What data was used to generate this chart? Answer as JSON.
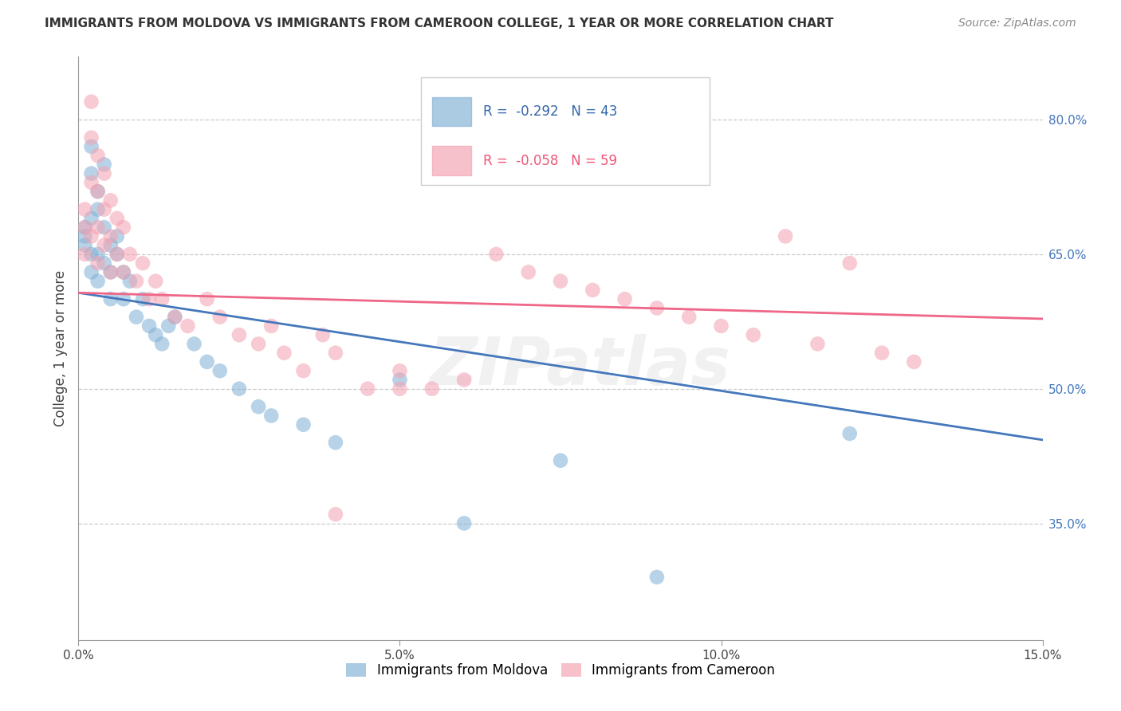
{
  "title": "IMMIGRANTS FROM MOLDOVA VS IMMIGRANTS FROM CAMEROON COLLEGE, 1 YEAR OR MORE CORRELATION CHART",
  "source": "Source: ZipAtlas.com",
  "ylabel": "College, 1 year or more",
  "xlim": [
    0.0,
    0.15
  ],
  "ylim": [
    0.22,
    0.87
  ],
  "yticks": [
    0.35,
    0.5,
    0.65,
    0.8
  ],
  "ytick_labels": [
    "35.0%",
    "50.0%",
    "65.0%",
    "80.0%"
  ],
  "xtick_labels": [
    "0.0%",
    "5.0%",
    "10.0%",
    "15.0%"
  ],
  "legend_R_moldova": "-0.292",
  "legend_N_moldova": "43",
  "legend_R_cameroon": "-0.058",
  "legend_N_cameroon": "59",
  "blue_color": "#7EB0D5",
  "pink_color": "#F4A0B0",
  "blue_line_color": "#4477BB",
  "pink_line_color": "#EE6688",
  "watermark": "ZIPatlas",
  "moldova_x": [
    0.001,
    0.001,
    0.001,
    0.002,
    0.002,
    0.002,
    0.002,
    0.002,
    0.003,
    0.003,
    0.003,
    0.003,
    0.004,
    0.004,
    0.004,
    0.005,
    0.005,
    0.005,
    0.006,
    0.006,
    0.007,
    0.007,
    0.008,
    0.009,
    0.01,
    0.011,
    0.012,
    0.013,
    0.014,
    0.015,
    0.018,
    0.02,
    0.022,
    0.025,
    0.028,
    0.03,
    0.035,
    0.04,
    0.05,
    0.06,
    0.075,
    0.09,
    0.12
  ],
  "moldova_y": [
    0.67,
    0.68,
    0.66,
    0.77,
    0.74,
    0.69,
    0.65,
    0.63,
    0.72,
    0.7,
    0.65,
    0.62,
    0.75,
    0.68,
    0.64,
    0.66,
    0.63,
    0.6,
    0.67,
    0.65,
    0.63,
    0.6,
    0.62,
    0.58,
    0.6,
    0.57,
    0.56,
    0.55,
    0.57,
    0.58,
    0.55,
    0.53,
    0.52,
    0.5,
    0.48,
    0.47,
    0.46,
    0.44,
    0.51,
    0.35,
    0.42,
    0.29,
    0.45
  ],
  "cameroon_x": [
    0.001,
    0.001,
    0.001,
    0.002,
    0.002,
    0.002,
    0.002,
    0.003,
    0.003,
    0.003,
    0.003,
    0.004,
    0.004,
    0.004,
    0.005,
    0.005,
    0.005,
    0.006,
    0.006,
    0.007,
    0.007,
    0.008,
    0.009,
    0.01,
    0.011,
    0.012,
    0.013,
    0.015,
    0.017,
    0.02,
    0.022,
    0.025,
    0.028,
    0.03,
    0.032,
    0.035,
    0.038,
    0.04,
    0.045,
    0.05,
    0.055,
    0.06,
    0.065,
    0.07,
    0.075,
    0.08,
    0.085,
    0.09,
    0.095,
    0.1,
    0.105,
    0.11,
    0.115,
    0.12,
    0.125,
    0.13,
    0.095,
    0.04,
    0.05
  ],
  "cameroon_y": [
    0.68,
    0.65,
    0.7,
    0.82,
    0.78,
    0.73,
    0.67,
    0.76,
    0.72,
    0.68,
    0.64,
    0.74,
    0.7,
    0.66,
    0.71,
    0.67,
    0.63,
    0.69,
    0.65,
    0.68,
    0.63,
    0.65,
    0.62,
    0.64,
    0.6,
    0.62,
    0.6,
    0.58,
    0.57,
    0.6,
    0.58,
    0.56,
    0.55,
    0.57,
    0.54,
    0.52,
    0.56,
    0.54,
    0.5,
    0.52,
    0.5,
    0.51,
    0.65,
    0.63,
    0.62,
    0.61,
    0.6,
    0.59,
    0.58,
    0.57,
    0.56,
    0.67,
    0.55,
    0.64,
    0.54,
    0.53,
    0.74,
    0.36,
    0.5
  ]
}
